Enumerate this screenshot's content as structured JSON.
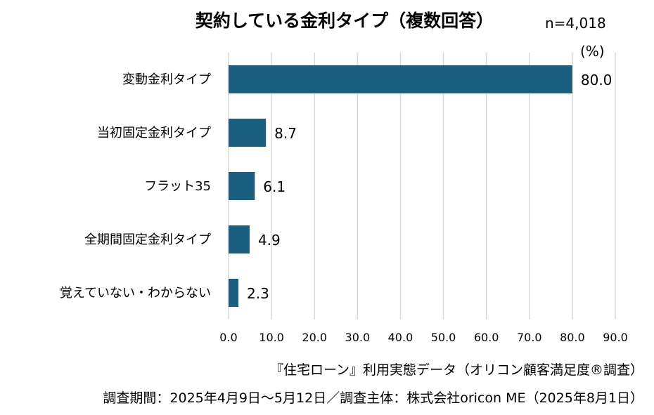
{
  "chart_data": {
    "type": "bar",
    "orientation": "horizontal",
    "title": "契約している金利タイプ（複数回答）",
    "sample_size": "n=4,018",
    "unit_label": "(%)",
    "categories": [
      "変動金利タイプ",
      "当初固定金利タイプ",
      "フラット35",
      "全期間固定金利タイプ",
      "覚えていない・わからない"
    ],
    "values": [
      80.0,
      8.7,
      6.1,
      4.9,
      2.3
    ],
    "value_labels": [
      "80.0",
      "8.7",
      "6.1",
      "4.9",
      "2.3"
    ],
    "xlim": [
      0,
      90
    ],
    "xticks": [
      "0.0",
      "10.0",
      "20.0",
      "30.0",
      "40.0",
      "50.0",
      "60.0",
      "70.0",
      "80.0",
      "90.0"
    ],
    "grid": true,
    "bar_color": "#1a5e80"
  },
  "footer": {
    "source": "『住宅ローン』利用実態データ（オリコン顧客満足度®調査）",
    "period": "調査期間：2025年4月9日～5月12日／調査主体：株式会社oricon ME（2025年8月1日）"
  }
}
